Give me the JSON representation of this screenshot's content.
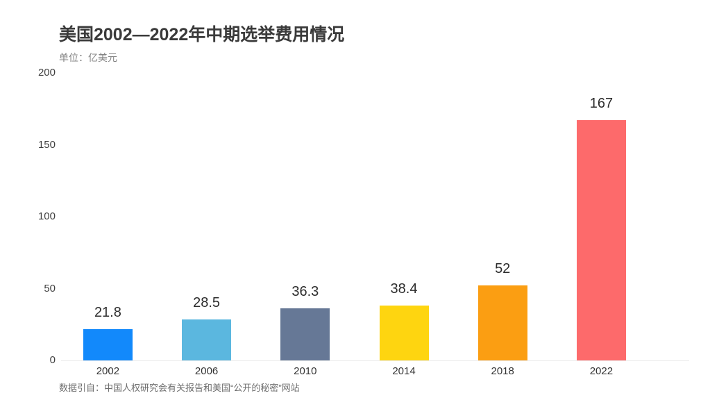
{
  "page": {
    "title": "美国2002—2022年中期选举费用情况",
    "subtitle": "单位：亿美元",
    "source": "数据引自：中国人权研究会有关报告和美国“公开的秘密”网站"
  },
  "chart_data": {
    "type": "bar",
    "title": "美国2002—2022年中期选举费用情况",
    "unit_label": "单位：亿美元",
    "categories": [
      "2002",
      "2006",
      "2010",
      "2014",
      "2018",
      "2022"
    ],
    "values": [
      21.8,
      28.5,
      36.3,
      38.4,
      52,
      167
    ],
    "value_labels": [
      "21.8",
      "28.5",
      "36.3",
      "38.4",
      "52",
      "167"
    ],
    "bar_colors": [
      "#1289FB",
      "#5BB7DF",
      "#667896",
      "#FED510",
      "#FB9E12",
      "#FD6A6B"
    ],
    "xlabel": "",
    "ylabel": "",
    "ylim": [
      0,
      200
    ],
    "yticks": [
      0,
      50,
      100,
      150,
      200
    ],
    "grid": false,
    "legend_position": "none",
    "axis_line_color": "#ececec",
    "source": "数据引自：中国人权研究会有关报告和美国“公开的秘密”网站"
  }
}
